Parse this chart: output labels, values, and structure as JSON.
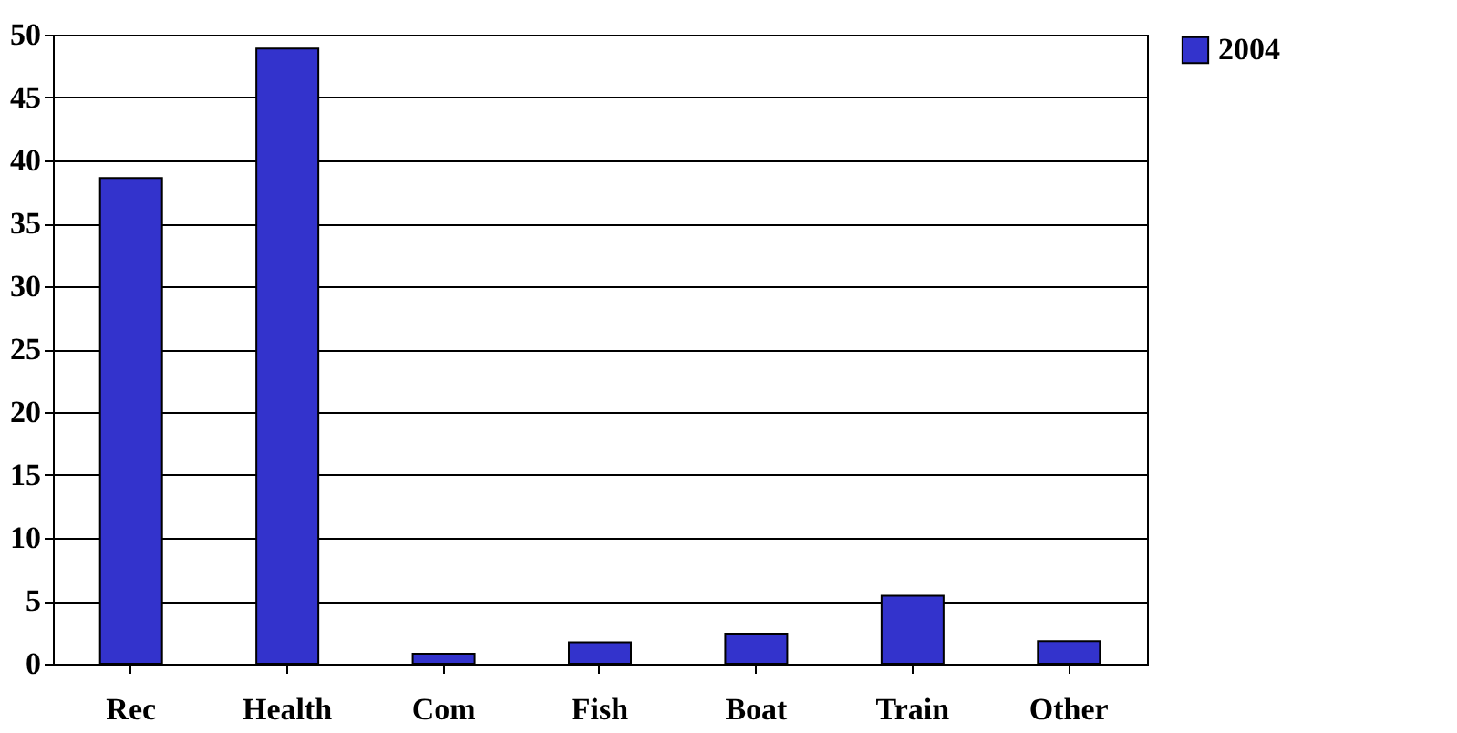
{
  "chart_data": {
    "type": "bar",
    "categories": [
      "Rec",
      "Health",
      "Com",
      "Fish",
      "Boat",
      "Train",
      "Other"
    ],
    "series": [
      {
        "name": "2004",
        "color": "#3333cc",
        "values": [
          38.6,
          48.9,
          0.8,
          1.7,
          2.4,
          5.4,
          1.8
        ]
      }
    ],
    "ylim": [
      0,
      50
    ],
    "yticks": [
      0,
      5,
      10,
      15,
      20,
      25,
      30,
      35,
      40,
      45,
      50
    ],
    "grid": "y",
    "legend": "right"
  }
}
